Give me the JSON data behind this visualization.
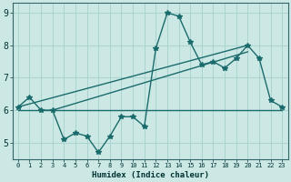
{
  "xlabel": "Humidex (Indice chaleur)",
  "x": [
    0,
    1,
    2,
    3,
    4,
    5,
    6,
    7,
    8,
    9,
    10,
    11,
    12,
    13,
    14,
    15,
    16,
    17,
    18,
    19,
    20,
    21,
    22,
    23
  ],
  "y_main": [
    6.1,
    6.4,
    6.0,
    6.0,
    5.1,
    5.3,
    5.2,
    4.7,
    5.2,
    5.8,
    5.8,
    5.5,
    7.9,
    9.0,
    8.9,
    8.1,
    7.4,
    7.5,
    7.3,
    7.6,
    8.0,
    7.6,
    6.3,
    6.1
  ],
  "line_flat": [
    [
      0,
      23
    ],
    [
      6.0,
      6.0
    ]
  ],
  "line_slope1": [
    [
      0,
      20
    ],
    [
      6.1,
      8.0
    ]
  ],
  "line_slope2": [
    [
      3,
      20
    ],
    [
      6.0,
      7.8
    ]
  ],
  "ylim": [
    4.5,
    9.3
  ],
  "xlim": [
    -0.5,
    23.5
  ],
  "yticks": [
    5,
    6,
    7,
    8,
    9
  ],
  "bg_color": "#cce8e5",
  "grid_color": "#aad4d0",
  "line_color": "#1a6b6b",
  "marker": "*",
  "markersize": 4,
  "linewidth": 1.0
}
